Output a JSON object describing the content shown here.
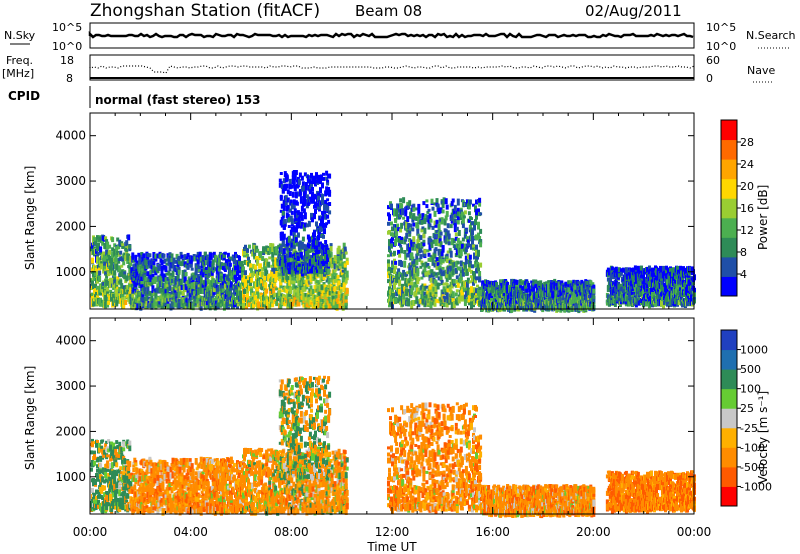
{
  "header": {
    "station": "Zhongshan Station (fitACF)",
    "beam": "Beam 08",
    "date": "02/Aug/2011"
  },
  "top_panels": {
    "nsky_label": "N.Sky",
    "nsky_ticks": [
      "10^5",
      "10^0"
    ],
    "nsearch_label": "N.Search",
    "nsearch_ticks": [
      "10^5",
      "10^0"
    ],
    "freq_label": "Freq.",
    "freq_unit": "[MHz]",
    "freq_ticks": [
      "18",
      "8"
    ],
    "nave_label": "Nave",
    "nave_ticks": [
      "60",
      "0"
    ],
    "cpid_label": "CPID",
    "cpid_text": "normal (fast stereo) 153"
  },
  "colors": {
    "power_scale": [
      "#0000ff",
      "#1f4fa8",
      "#2e8b57",
      "#4caf50",
      "#9acd32",
      "#ffd700",
      "#ffa500",
      "#ff6a00",
      "#ff0000"
    ],
    "velocity_scale": [
      "#ff0000",
      "#ff5a00",
      "#ff8c00",
      "#ffb000",
      "#c8c8c8",
      "#66cc33",
      "#2e8b57",
      "#1f6fb0",
      "#2040c0"
    ]
  },
  "chart_data": [
    {
      "type": "heatmap",
      "name": "power",
      "ylabel": "Slant Range [km]",
      "xlabel": "",
      "xlim": [
        "00:00",
        "24:00"
      ],
      "ylim": [
        180,
        4500
      ],
      "x_ticks": [
        "00:00",
        "04:00",
        "08:00",
        "12:00",
        "16:00",
        "20:00",
        "00:00"
      ],
      "y_ticks": [
        1000,
        2000,
        3000,
        4000
      ],
      "colorbar": {
        "label": "Power [dB]",
        "ticks": [
          4,
          8,
          12,
          16,
          20,
          24,
          28
        ]
      },
      "echo_regions": [
        {
          "t_start": 0.0,
          "t_end": 1.6,
          "r_low": 300,
          "r_high": 1800,
          "value": 16
        },
        {
          "t_start": 1.6,
          "t_end": 6.0,
          "r_low": 250,
          "r_high": 1400,
          "value": 12
        },
        {
          "t_start": 6.0,
          "t_end": 10.2,
          "r_low": 250,
          "r_high": 1600,
          "value": 18
        },
        {
          "t_start": 7.5,
          "t_end": 9.5,
          "r_low": 1000,
          "r_high": 3200,
          "value": 6
        },
        {
          "t_start": 11.8,
          "t_end": 15.5,
          "r_low": 300,
          "r_high": 2600,
          "value": 14
        },
        {
          "t_start": 15.5,
          "t_end": 20.0,
          "r_low": 200,
          "r_high": 800,
          "value": 12
        },
        {
          "t_start": 20.5,
          "t_end": 24.0,
          "r_low": 300,
          "r_high": 1100,
          "value": 10
        }
      ]
    },
    {
      "type": "heatmap",
      "name": "velocity",
      "ylabel": "Slant Range [km]",
      "xlabel": "Time UT",
      "xlim": [
        "00:00",
        "24:00"
      ],
      "ylim": [
        180,
        4500
      ],
      "x_ticks": [
        "00:00",
        "04:00",
        "08:00",
        "12:00",
        "16:00",
        "20:00",
        "00:00"
      ],
      "y_ticks": [
        1000,
        2000,
        3000,
        4000
      ],
      "colorbar": {
        "label": "Velocity [m s⁻¹]",
        "ticks": [
          1000,
          500,
          100,
          25,
          -25,
          -100,
          -500,
          -1000
        ]
      },
      "echo_regions": [
        {
          "t_start": 0.0,
          "t_end": 1.6,
          "r_low": 300,
          "r_high": 1800,
          "value": 150
        },
        {
          "t_start": 1.6,
          "t_end": 6.0,
          "r_low": 250,
          "r_high": 1400,
          "value": -300
        },
        {
          "t_start": 6.0,
          "t_end": 10.2,
          "r_low": 250,
          "r_high": 1600,
          "value": -200
        },
        {
          "t_start": 7.5,
          "t_end": 9.5,
          "r_low": 1000,
          "r_high": 3200,
          "value": 25
        },
        {
          "t_start": 11.8,
          "t_end": 15.5,
          "r_low": 300,
          "r_high": 2600,
          "value": -300
        },
        {
          "t_start": 15.5,
          "t_end": 20.0,
          "r_low": 200,
          "r_high": 800,
          "value": -300
        },
        {
          "t_start": 20.5,
          "t_end": 24.0,
          "r_low": 300,
          "r_high": 1100,
          "value": -400
        }
      ]
    }
  ]
}
